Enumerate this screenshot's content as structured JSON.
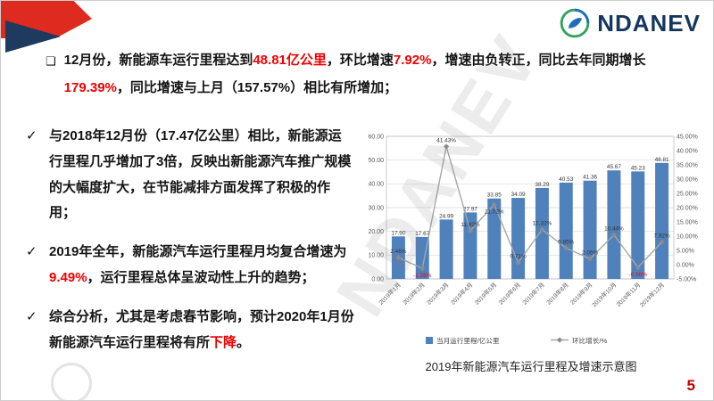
{
  "slide": {
    "logo_text": "NDANEV",
    "watermark_text": "NDANEV",
    "page_number": "5",
    "chart_caption": "2019年新能源汽车运行里程及增速示意图"
  },
  "markers": {
    "square": "❑",
    "check": "✓"
  },
  "bullets": {
    "b1": [
      {
        "t": "12月份，新能源车运行里程达到"
      },
      {
        "t": "48.81亿公里",
        "red": true
      },
      {
        "t": "，环比增速"
      },
      {
        "t": "7.92%",
        "red": true
      },
      {
        "t": "，增速由负转正，同比去年同期增长"
      },
      {
        "t": "179.39%",
        "red": true
      },
      {
        "t": "，同比增速与上月（157.57%）相比有所增加；"
      }
    ],
    "b2": [
      {
        "t": "与2018年12月份（17.47亿公里）相比，新能源运行里程几乎增加了3倍，反映出新能源汽车推广规模的大幅度扩大，在节能减排方面发挥了积极的作用；"
      }
    ],
    "b3": [
      {
        "t": "2019年全年，新能源汽车运行里程月均复合增速为"
      },
      {
        "t": "9.49%",
        "red": true
      },
      {
        "t": "，运行里程总体呈波动性上升的趋势；"
      }
    ],
    "b4": [
      {
        "t": "综合分析，尤其是考虑春节影响，预计2020年1月份新能源汽车运行里程将有所"
      },
      {
        "t": "下降",
        "red": true
      },
      {
        "t": "。"
      }
    ]
  },
  "chart_data": {
    "type": "bar+line",
    "categories": [
      "2019年1月",
      "2019年2月",
      "2019年3月",
      "2019年4月",
      "2019年5月",
      "2019年6月",
      "2019年7月",
      "2019年8月",
      "2019年9月",
      "2019年10月",
      "2019年11月",
      "2019年12月"
    ],
    "series": [
      {
        "name": "当月运行里程/亿公里",
        "type": "bar",
        "color": "#4f81bd",
        "values": [
          17.9,
          17.67,
          24.99,
          27.97,
          33.85,
          34.09,
          38.29,
          40.53,
          41.36,
          45.67,
          45.23,
          48.81
        ],
        "labels": [
          "17.90",
          "17.67",
          "24.99",
          "27.97",
          "33.85",
          "34.09",
          "38.29",
          "40.53",
          "41.36",
          "45.67",
          "45.23",
          "48.81"
        ]
      },
      {
        "name": "环比增长/%",
        "type": "line",
        "color": "#a6a6a6",
        "marker_color": "#8c8c8c",
        "negative_label_color": "#ff0000",
        "values": [
          2.46,
          -1.28,
          41.43,
          11.92,
          21.02,
          0.71,
          12.32,
          5.85,
          2.05,
          10.44,
          -0.96,
          7.92
        ],
        "labels": [
          "2.46%",
          "-1.28%",
          "41.43%",
          "11.92%",
          "21.02%",
          "0.71%",
          "12.32%",
          "5.85%",
          "2.05%",
          "10.44%",
          "-0.96%",
          "7.92%"
        ]
      }
    ],
    "left_axis": {
      "min": 0,
      "max": 60,
      "step": 10,
      "labels": [
        "0.00",
        "10.00",
        "20.00",
        "30.00",
        "40.00",
        "50.00",
        "60.00"
      ]
    },
    "right_axis": {
      "min": -5,
      "max": 45,
      "step": 5,
      "labels": [
        "-5.00%",
        "0.00%",
        "5.00%",
        "10.00%",
        "15.00%",
        "20.00%",
        "25.00%",
        "30.00%",
        "35.00%",
        "40.00%",
        "45.00%"
      ]
    },
    "gridlines": true,
    "legend_position": "bottom",
    "title": ""
  }
}
